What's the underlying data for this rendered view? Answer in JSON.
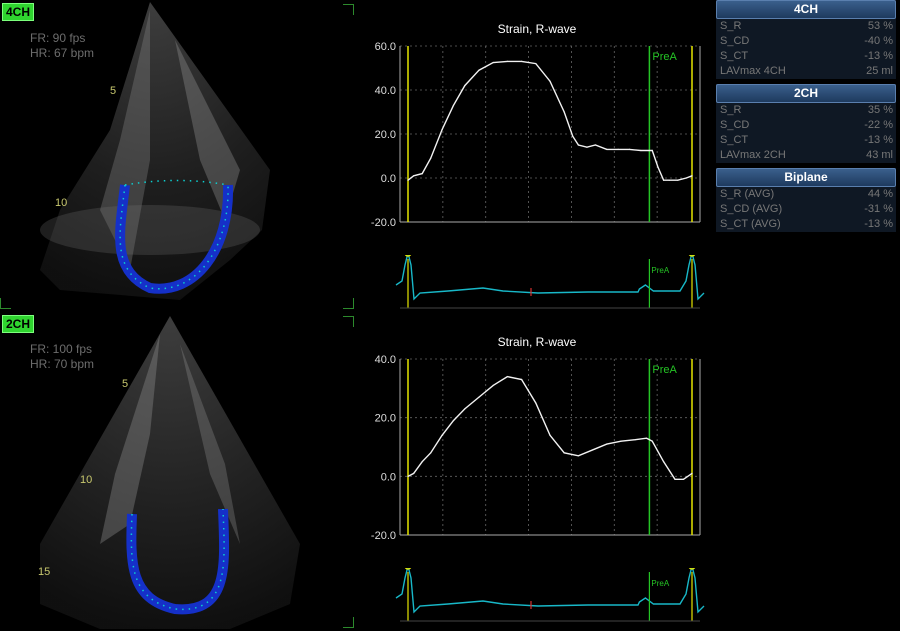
{
  "views": [
    {
      "tag": "4CH",
      "fr": "FR: 90 fps",
      "hr": "HR: 67 bpm",
      "depth_labels": [
        "5",
        "10"
      ]
    },
    {
      "tag": "2CH",
      "fr": "FR: 100 fps",
      "hr": "HR: 70 bpm",
      "depth_labels": [
        "5",
        "10",
        "15"
      ]
    }
  ],
  "charts": [
    {
      "title": "Strain, R-wave",
      "marker_label": "PreA",
      "ecg_marker_label": "PreA",
      "chart_data": {
        "type": "line",
        "title": "Strain, R-wave",
        "ylim": [
          -20,
          60
        ],
        "yticks": [
          60,
          40,
          20,
          0,
          -20
        ],
        "ytick_labels": [
          "60.0",
          "40.0",
          "20.0",
          "0.0",
          "-20.0"
        ],
        "x": [
          0,
          0.02,
          0.05,
          0.08,
          0.12,
          0.16,
          0.2,
          0.25,
          0.3,
          0.35,
          0.4,
          0.45,
          0.5,
          0.55,
          0.58,
          0.6,
          0.63,
          0.66,
          0.7,
          0.74,
          0.78,
          0.82,
          0.86,
          0.88,
          0.9,
          0.92,
          0.95,
          0.98,
          1.0
        ],
        "series": [
          {
            "values": [
              -1,
              1,
              2,
              9,
              22,
              33,
              42,
              49,
              52.5,
              53,
              53,
              52,
              44,
              30,
              19,
              15,
              14,
              15,
              13,
              13,
              13,
              12.5,
              12.5,
              5,
              -1,
              -1,
              -1,
              0,
              1
            ]
          }
        ]
      }
    },
    {
      "title": "Strain, R-wave",
      "marker_label": "PreA",
      "ecg_marker_label": "PreA",
      "chart_data": {
        "type": "line",
        "title": "Strain, R-wave",
        "ylim": [
          -20,
          40
        ],
        "yticks": [
          40,
          20,
          0,
          -20
        ],
        "ytick_labels": [
          "40.0",
          "20.0",
          "0.0",
          "-20.0"
        ],
        "x": [
          0,
          0.02,
          0.05,
          0.08,
          0.12,
          0.16,
          0.2,
          0.25,
          0.3,
          0.35,
          0.4,
          0.45,
          0.5,
          0.55,
          0.6,
          0.65,
          0.7,
          0.75,
          0.8,
          0.84,
          0.86,
          0.9,
          0.94,
          0.97,
          1.0
        ],
        "series": [
          {
            "values": [
              0,
              1,
              5,
              8,
              14,
              19,
              23,
              27,
              31,
              34,
              33,
              25,
              14,
              8,
              7,
              9,
              11,
              12,
              12.5,
              13,
              12,
              5,
              -1,
              -1,
              1
            ]
          }
        ]
      }
    }
  ],
  "sidebar": [
    {
      "title": "4CH",
      "rows": [
        {
          "label": "S_R",
          "value": "53 %"
        },
        {
          "label": "S_CD",
          "value": "-40 %"
        },
        {
          "label": "S_CT",
          "value": "-13 %"
        },
        {
          "label": "LAVmax 4CH",
          "value": "25 ml"
        }
      ]
    },
    {
      "title": "2CH",
      "rows": [
        {
          "label": "S_R",
          "value": "35 %"
        },
        {
          "label": "S_CD",
          "value": "-22 %"
        },
        {
          "label": "S_CT",
          "value": "-13 %"
        },
        {
          "label": "LAVmax 2CH",
          "value": "43 ml"
        }
      ]
    },
    {
      "title": "Biplane",
      "rows": [
        {
          "label": "S_R (AVG)",
          "value": "44 %"
        },
        {
          "label": "S_CD (AVG)",
          "value": "-31 %"
        },
        {
          "label": "S_CT (AVG)",
          "value": "-13 %"
        }
      ]
    }
  ]
}
